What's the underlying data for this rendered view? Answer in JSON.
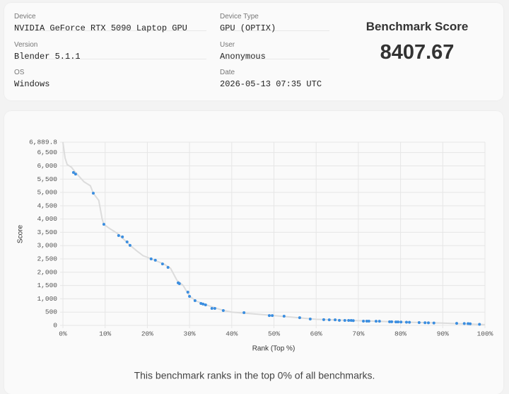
{
  "info": {
    "fields": [
      {
        "label": "Device",
        "value": "NVIDIA GeForce RTX 5090 Laptop GPU"
      },
      {
        "label": "Version",
        "value": "Blender 5.1.1"
      },
      {
        "label": "OS",
        "value": "Windows"
      },
      {
        "label": "Device Type",
        "value": "GPU (OPTIX)"
      },
      {
        "label": "User",
        "value": "Anonymous"
      },
      {
        "label": "Date",
        "value": "2026-05-13 07:35 UTC"
      }
    ],
    "score_title": "Benchmark Score",
    "score": "8407.67"
  },
  "chart_data": {
    "type": "scatter",
    "x_label": "Rank (Top %)",
    "y_label": "Score",
    "xlim": [
      0,
      100
    ],
    "ylim": [
      0,
      6889.8
    ],
    "xticks": [
      {
        "value": 0,
        "label": "0%"
      },
      {
        "value": 10,
        "label": "10%"
      },
      {
        "value": 20,
        "label": "20%"
      },
      {
        "value": 30,
        "label": "30%"
      },
      {
        "value": 40,
        "label": "40%"
      },
      {
        "value": 50,
        "label": "50%"
      },
      {
        "value": 60,
        "label": "60%"
      },
      {
        "value": 70,
        "label": "70%"
      },
      {
        "value": 80,
        "label": "80%"
      },
      {
        "value": 90,
        "label": "90%"
      },
      {
        "value": 100,
        "label": "100%"
      }
    ],
    "yticks": [
      0,
      500,
      {
        "value": 1000,
        "label": "1,000"
      },
      {
        "value": 1500,
        "label": "1,500"
      },
      {
        "value": 2000,
        "label": "2,000"
      },
      {
        "value": 2500,
        "label": "2,500"
      },
      {
        "value": 3000,
        "label": "3,000"
      },
      {
        "value": 3500,
        "label": "3,500"
      },
      {
        "value": 4000,
        "label": "4,000"
      },
      {
        "value": 4500,
        "label": "4,500"
      },
      {
        "value": 5000,
        "label": "5,000"
      },
      {
        "value": 5500,
        "label": "5,500"
      },
      {
        "value": 6000,
        "label": "6,000"
      },
      {
        "value": 6500,
        "label": "6,500"
      },
      {
        "value": 6889.8,
        "label": "6,889.8"
      }
    ],
    "grid": true,
    "series": [
      {
        "type": "line",
        "color": "#dcdcdc",
        "x": [
          0,
          0.5,
          1,
          2,
          3,
          5,
          6.5,
          7.2,
          8.5,
          9.3,
          9.7,
          11,
          13,
          16,
          17.5,
          19,
          21,
          24,
          25.5,
          27,
          28.5,
          30,
          31.5,
          34,
          38,
          40,
          50,
          60,
          70,
          80,
          90,
          100
        ],
        "values": [
          6889.8,
          6300,
          6050,
          5950,
          5750,
          5400,
          5250,
          4970,
          4700,
          4000,
          3800,
          3650,
          3450,
          3000,
          2800,
          2620,
          2500,
          2300,
          2150,
          1700,
          1500,
          1100,
          920,
          770,
          560,
          500,
          370,
          230,
          175,
          125,
          85,
          30
        ]
      },
      {
        "type": "scatter",
        "color": "#3b8ee0",
        "x": [
          2.5,
          3.0,
          7.2,
          9.7,
          13.2,
          14.1,
          15.2,
          15.9,
          20.9,
          21.9,
          23.6,
          24.9,
          27.3,
          27.6,
          29.6,
          30.0,
          31.3,
          32.7,
          33.2,
          33.8,
          35.3,
          36.0,
          38.0,
          42.9,
          48.9,
          49.6,
          52.4,
          56.1,
          58.6,
          61.8,
          63.1,
          64.5,
          65.5,
          66.8,
          67.7,
          68.3,
          68.8,
          71.2,
          72.0,
          72.5,
          74.2,
          75.0,
          77.4,
          77.9,
          78.9,
          79.4,
          80.1,
          81.4,
          82.1,
          84.4,
          85.8,
          86.6,
          87.9,
          93.3,
          95.1,
          96.0,
          96.5,
          98.7
        ],
        "values": [
          5750,
          5690,
          4970,
          3800,
          3380,
          3330,
          3140,
          3010,
          2500,
          2450,
          2310,
          2180,
          1600,
          1570,
          1250,
          1090,
          930,
          825,
          800,
          770,
          640,
          640,
          560,
          480,
          370,
          370,
          345,
          290,
          240,
          215,
          210,
          210,
          190,
          185,
          185,
          185,
          180,
          160,
          160,
          160,
          155,
          155,
          135,
          135,
          130,
          130,
          125,
          120,
          115,
          105,
          100,
          95,
          90,
          75,
          70,
          65,
          60,
          40
        ]
      }
    ]
  },
  "footer": "This benchmark ranks in the top 0% of all benchmarks."
}
